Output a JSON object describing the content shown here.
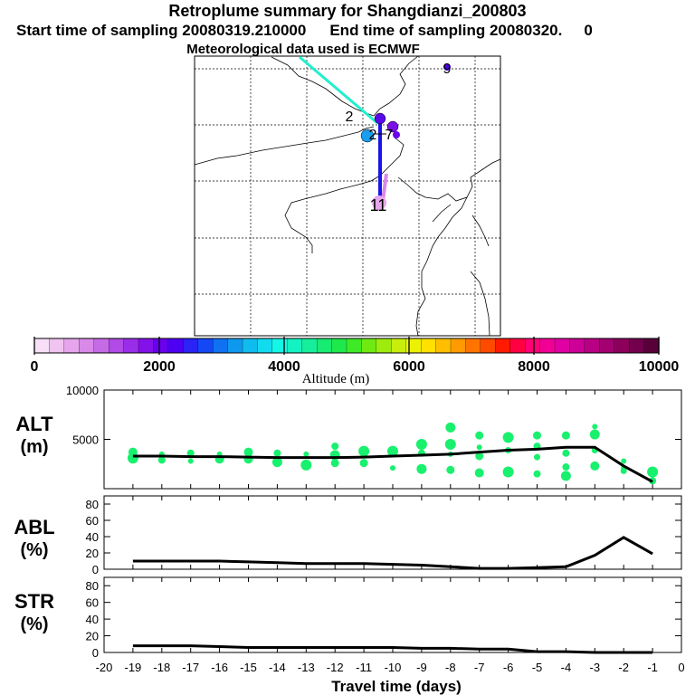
{
  "header": {
    "title": "Retroplume summary for Shangdianzi_200803",
    "start_label": "Start time of sampling 20080319.210000",
    "end_label": "End time of sampling 20080320.",
    "end_suffix": "0",
    "met_label": "Meteorological data used is ECMWF"
  },
  "map": {
    "labels": [
      {
        "text": "9"
      },
      {
        "text": "2"
      },
      {
        "text": "2"
      },
      {
        "text": "7"
      },
      {
        "text": "11"
      }
    ]
  },
  "colorbar": {
    "label": "Altitude (m)",
    "ticks": [
      "0",
      "2000",
      "4000",
      "6000",
      "8000",
      "10000"
    ],
    "colors": [
      "#f7dff7",
      "#f0c3f0",
      "#e6a5ec",
      "#d98ae8",
      "#c66be6",
      "#b14ae6",
      "#9a2ee8",
      "#8410ea",
      "#6a00ee",
      "#4d00f3",
      "#2b22f5",
      "#1448f5",
      "#0f72f2",
      "#0e98ee",
      "#10bced",
      "#12dbf0",
      "#14f7e6",
      "#14f2c2",
      "#16ee9b",
      "#18eb72",
      "#1ee84b",
      "#3eea25",
      "#6eea12",
      "#9eeb0e",
      "#c8ee0c",
      "#edf205",
      "#ffe000",
      "#ffbe00",
      "#ff9b00",
      "#ff7400",
      "#ff4a00",
      "#ff1a00",
      "#ff0040",
      "#ff0077",
      "#f20096",
      "#e000a4",
      "#cc0096",
      "#b80084",
      "#a30070",
      "#8c005c",
      "#72004c",
      "#58003a"
    ]
  },
  "colors": {
    "trajectory": "#1a14e6",
    "cyan_track": "#1ff0cc",
    "scatter": "#19f06e",
    "line": "#000000"
  },
  "chart_data": [
    {
      "type": "scatter",
      "name": "ALT",
      "ylabel": "ALT",
      "yunit": "(m)",
      "ylim": [
        0,
        10000
      ],
      "yticks": [
        0,
        5000,
        10000
      ],
      "y_tick_labels": [
        "",
        "5000",
        "10000"
      ],
      "xlim": [
        -20,
        0
      ],
      "median_line": {
        "x": [
          -19,
          -18,
          -17,
          -16,
          -15,
          -14,
          -13,
          -12,
          -11,
          -10,
          -9,
          -8,
          -7,
          -6,
          -5,
          -4,
          -3,
          -2,
          -1
        ],
        "y": [
          3300,
          3300,
          3250,
          3250,
          3200,
          3150,
          3150,
          3150,
          3200,
          3300,
          3400,
          3500,
          3700,
          3900,
          4000,
          4200,
          4200,
          2300,
          700
        ]
      },
      "points": [
        [
          -19,
          3700
        ],
        [
          -19,
          3100
        ],
        [
          -18,
          3500
        ],
        [
          -18,
          2900
        ],
        [
          -17,
          3600
        ],
        [
          -17,
          2800
        ],
        [
          -16,
          3500
        ],
        [
          -16,
          3000
        ],
        [
          -15,
          3700
        ],
        [
          -15,
          3000
        ],
        [
          -14,
          3600
        ],
        [
          -14,
          2700
        ],
        [
          -13,
          3500
        ],
        [
          -13,
          2400
        ],
        [
          -12,
          4300
        ],
        [
          -12,
          3400
        ],
        [
          -12,
          2600
        ],
        [
          -11,
          3800
        ],
        [
          -11,
          2600
        ],
        [
          -10,
          3800
        ],
        [
          -10,
          2100
        ],
        [
          -9,
          4500
        ],
        [
          -9,
          3600
        ],
        [
          -9,
          2000
        ],
        [
          -8,
          6200
        ],
        [
          -8,
          4500
        ],
        [
          -8,
          3500
        ],
        [
          -8,
          1900
        ],
        [
          -7,
          5400
        ],
        [
          -7,
          4200
        ],
        [
          -7,
          3300
        ],
        [
          -7,
          1600
        ],
        [
          -6,
          5200
        ],
        [
          -6,
          3900
        ],
        [
          -6,
          1700
        ],
        [
          -5,
          5400
        ],
        [
          -5,
          4300
        ],
        [
          -5,
          3200
        ],
        [
          -5,
          1500
        ],
        [
          -4,
          5400
        ],
        [
          -4,
          3600
        ],
        [
          -4,
          2200
        ],
        [
          -4,
          1300
        ],
        [
          -3,
          6300
        ],
        [
          -3,
          5500
        ],
        [
          -3,
          3900
        ],
        [
          -3,
          2300
        ],
        [
          -2,
          2800
        ],
        [
          -2,
          2100
        ],
        [
          -2,
          1800
        ],
        [
          -1,
          1700
        ],
        [
          -1,
          800
        ]
      ]
    },
    {
      "type": "line",
      "name": "ABL",
      "ylabel": "ABL",
      "yunit": "(%)",
      "ylim": [
        0,
        90
      ],
      "yticks": [
        0,
        20,
        40,
        60,
        80
      ],
      "y_tick_labels": [
        "0",
        "20",
        "40",
        "60",
        "80"
      ],
      "xlim": [
        -20,
        0
      ],
      "x": [
        -19,
        -18,
        -17,
        -16,
        -15,
        -14,
        -13,
        -12,
        -11,
        -10,
        -9,
        -8,
        -7,
        -6,
        -5,
        -4,
        -3,
        -2,
        -1
      ],
      "y": [
        10,
        10,
        10,
        10,
        9,
        8,
        7,
        7,
        7,
        6,
        5,
        3,
        1,
        1,
        2,
        3,
        17,
        39,
        19
      ]
    },
    {
      "type": "line",
      "name": "STR",
      "ylabel": "STR",
      "yunit": "(%)",
      "ylim": [
        0,
        90
      ],
      "yticks": [
        0,
        20,
        40,
        60,
        80
      ],
      "y_tick_labels": [
        "0",
        "20",
        "40",
        "60",
        "80"
      ],
      "xlim": [
        -20,
        0
      ],
      "xlabel": "Travel time (days)",
      "x_tick_labels": [
        "-20",
        "-19",
        "-18",
        "-17",
        "-16",
        "-15",
        "-14",
        "-13",
        "-12",
        "-11",
        "-10",
        "-9",
        "-8",
        "-7",
        "-6",
        "-5",
        "-4",
        "-3",
        "-2",
        "-1",
        "0"
      ],
      "x": [
        -19,
        -18,
        -17,
        -16,
        -15,
        -14,
        -13,
        -12,
        -11,
        -10,
        -9,
        -8,
        -7,
        -6,
        -5,
        -4,
        -3,
        -2,
        -1
      ],
      "y": [
        8,
        8,
        8,
        7,
        6,
        6,
        6,
        6,
        6,
        6,
        5,
        5,
        4,
        4,
        1,
        1,
        0,
        0,
        0
      ]
    }
  ]
}
